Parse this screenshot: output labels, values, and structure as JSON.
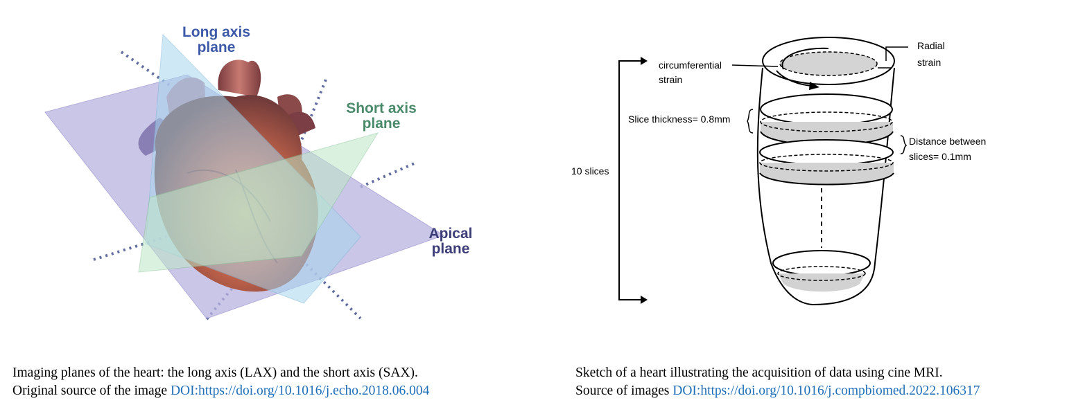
{
  "left_figure": {
    "labels": {
      "long_axis_line1": "Long axis",
      "long_axis_line2": "plane",
      "short_axis_line1": "Short axis",
      "short_axis_line2": "plane",
      "apical_line1": "Apical",
      "apical_line2": "plane"
    },
    "colors": {
      "long_axis_label": "#3d5aa8",
      "short_axis_label": "#4a8a6a",
      "apical_label": "#3d3e78",
      "apical_plane": "#b9b3e0",
      "long_axis_plane": "#a8d6ee",
      "short_axis_plane": "#bfe6c8",
      "heart": "#c0584a",
      "dotted_line": "#3b4a8a"
    }
  },
  "right_figure": {
    "labels": {
      "radial_line1": "Radial",
      "radial_line2": "strain",
      "circumferential_line1": "circumferential",
      "circumferential_line2": "strain",
      "slice_thickness": "Slice thickness= 0.8mm",
      "distance_line1": "Distance between",
      "distance_line2": "slices= 0.1mm",
      "slices_count": "10 slices"
    }
  },
  "captions": {
    "left": {
      "line1": "Imaging planes of the heart: the long axis (LAX) and the short axis (SAX).",
      "line2_prefix": "Original source of the image ",
      "line2_link": "DOI:https://doi.org/10.1016/j.echo.2018.06.004"
    },
    "right": {
      "line1": "Sketch of a heart illustrating the acquisition of data using cine MRI.",
      "line2_prefix": "Source of images ",
      "line2_link": "DOI:https://doi.org/10.1016/j.compbiomed.2022.106317"
    }
  }
}
